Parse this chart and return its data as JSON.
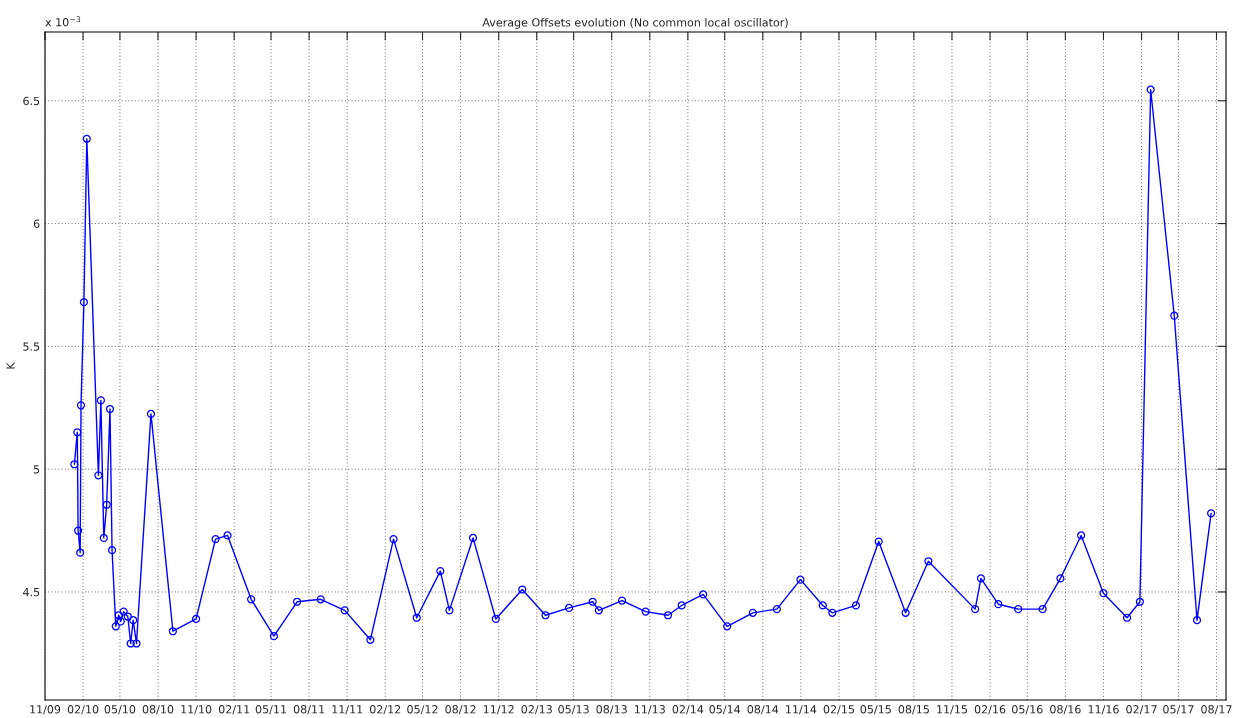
{
  "chart_data": {
    "type": "line",
    "title": "Average Offsets evolution (No common local oscillator)",
    "ylabel": "K",
    "annotations": [
      "x 10$^{−3}$"
    ],
    "x": [
      "2010-01-11",
      "2010-01-18",
      "2010-01-20",
      "2010-01-25",
      "2010-01-27",
      "2010-02-03",
      "2010-02-10",
      "2010-03-10",
      "2010-03-16",
      "2010-03-23",
      "2010-03-30",
      "2010-04-07",
      "2010-04-12",
      "2010-04-21",
      "2010-04-28",
      "2010-05-03",
      "2010-05-10",
      "2010-05-20",
      "2010-05-27",
      "2010-06-02",
      "2010-06-10",
      "2010-07-15",
      "2010-09-06",
      "2010-11-01",
      "2010-12-18",
      "2011-01-16",
      "2011-03-14",
      "2011-05-08",
      "2011-07-03",
      "2011-08-29",
      "2011-10-26",
      "2011-12-27",
      "2012-02-21",
      "2012-04-17",
      "2012-06-13",
      "2012-07-05",
      "2012-08-31",
      "2012-10-25",
      "2012-12-28",
      "2013-02-22",
      "2013-04-20",
      "2013-06-16",
      "2013-07-01",
      "2013-08-26",
      "2013-10-22",
      "2013-12-15",
      "2014-01-17",
      "2014-03-10",
      "2014-05-07",
      "2014-07-08",
      "2014-09-04",
      "2014-10-31",
      "2014-12-24",
      "2015-01-16",
      "2015-03-14",
      "2015-05-08",
      "2015-07-12",
      "2015-09-05",
      "2015-12-27",
      "2016-01-10",
      "2016-02-21",
      "2016-04-09",
      "2016-06-07",
      "2016-07-20",
      "2016-09-08",
      "2016-11-01",
      "2016-12-28",
      "2017-01-28",
      "2017-02-23",
      "2017-04-21",
      "2017-06-15",
      "2017-07-19"
    ],
    "series": [
      {
        "color": "#0000ff",
        "values": [
          5.02,
          5.15,
          4.75,
          4.66,
          5.26,
          5.68,
          6.345,
          4.975,
          5.28,
          4.72,
          4.855,
          5.245,
          4.67,
          4.36,
          4.405,
          4.38,
          4.42,
          4.4,
          4.29,
          4.385,
          4.29,
          5.225,
          4.34,
          4.39,
          4.715,
          4.73,
          4.47,
          4.32,
          4.46,
          4.47,
          4.425,
          4.305,
          4.715,
          4.395,
          4.585,
          4.425,
          4.72,
          4.39,
          4.51,
          4.405,
          4.435,
          4.46,
          4.425,
          4.465,
          4.42,
          4.405,
          4.445,
          4.49,
          4.36,
          4.415,
          4.43,
          4.55,
          4.445,
          4.415,
          4.445,
          4.705,
          4.415,
          4.625,
          4.43,
          4.555,
          4.45,
          4.43,
          4.43,
          4.555,
          4.73,
          4.495,
          4.395,
          4.46,
          6.545,
          5.625,
          4.385,
          4.82
        ]
      }
    ],
    "xlim": [
      "2009-11-01",
      "2017-08-24"
    ],
    "xticks": [
      {
        "value": "2009-11-01",
        "label": "11/09"
      },
      {
        "value": "2010-02-01",
        "label": "02/10"
      },
      {
        "value": "2010-05-01",
        "label": "05/10"
      },
      {
        "value": "2010-08-01",
        "label": "08/10"
      },
      {
        "value": "2010-11-01",
        "label": "11/10"
      },
      {
        "value": "2011-02-01",
        "label": "02/11"
      },
      {
        "value": "2011-05-01",
        "label": "05/11"
      },
      {
        "value": "2011-08-01",
        "label": "08/11"
      },
      {
        "value": "2011-11-01",
        "label": "11/11"
      },
      {
        "value": "2012-02-01",
        "label": "02/12"
      },
      {
        "value": "2012-05-01",
        "label": "05/12"
      },
      {
        "value": "2012-08-01",
        "label": "08/12"
      },
      {
        "value": "2012-11-01",
        "label": "11/12"
      },
      {
        "value": "2013-02-01",
        "label": "02/13"
      },
      {
        "value": "2013-05-01",
        "label": "05/13"
      },
      {
        "value": "2013-08-01",
        "label": "08/13"
      },
      {
        "value": "2013-11-01",
        "label": "11/13"
      },
      {
        "value": "2014-02-01",
        "label": "02/14"
      },
      {
        "value": "2014-05-01",
        "label": "05/14"
      },
      {
        "value": "2014-08-01",
        "label": "08/14"
      },
      {
        "value": "2014-11-01",
        "label": "11/14"
      },
      {
        "value": "2015-02-01",
        "label": "02/15"
      },
      {
        "value": "2015-05-01",
        "label": "05/15"
      },
      {
        "value": "2015-08-01",
        "label": "08/15"
      },
      {
        "value": "2015-11-01",
        "label": "11/15"
      },
      {
        "value": "2016-02-01",
        "label": "02/16"
      },
      {
        "value": "2016-05-01",
        "label": "05/16"
      },
      {
        "value": "2016-08-01",
        "label": "08/16"
      },
      {
        "value": "2016-11-01",
        "label": "11/16"
      },
      {
        "value": "2017-02-01",
        "label": "02/17"
      },
      {
        "value": "2017-05-01",
        "label": "05/17"
      },
      {
        "value": "2017-08-01",
        "label": "08/17"
      }
    ],
    "ylim": [
      4.06,
      6.78
    ],
    "yticks": [
      4.5,
      5,
      5.5,
      6,
      6.5
    ],
    "grid": true,
    "marker": "circle",
    "line_style": "solid"
  }
}
